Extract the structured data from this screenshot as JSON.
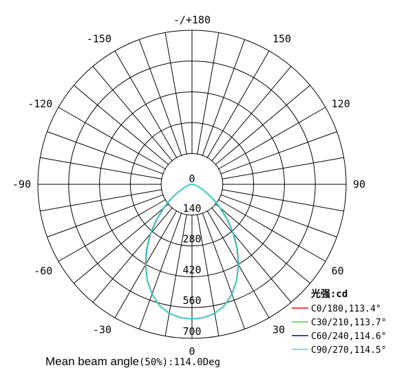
{
  "chart_data": {
    "type": "polar",
    "unit_label": "光强:cd",
    "radial_ticks": [
      "0",
      "140",
      "280",
      "420",
      "560",
      "700"
    ],
    "radial_values": [
      0,
      140,
      280,
      420,
      560,
      700
    ],
    "r_max": 700,
    "angle_labels": [
      {
        "text": "0",
        "deg": 0
      },
      {
        "text": "30",
        "deg": 30
      },
      {
        "text": "60",
        "deg": 60
      },
      {
        "text": "90",
        "deg": 90
      },
      {
        "text": "120",
        "deg": 120
      },
      {
        "text": "150",
        "deg": 150
      },
      {
        "text": "-/+180",
        "deg": 180
      },
      {
        "text": "-150",
        "deg": -150
      },
      {
        "text": "-120",
        "deg": -120
      },
      {
        "text": "-90",
        "deg": -90
      },
      {
        "text": "-60",
        "deg": -60
      },
      {
        "text": "-30",
        "deg": -30
      }
    ],
    "spoke_step_deg": 10,
    "series": [
      {
        "name": "C0/180,113.4°",
        "color": "#ff0000",
        "angles": [
          -90,
          -80,
          -70,
          -60,
          -55,
          -50,
          -45,
          -40,
          -35,
          -30,
          -25,
          -20,
          -15,
          -10,
          -5,
          0,
          5,
          10,
          15,
          20,
          25,
          30,
          35,
          40,
          45,
          50,
          55,
          60,
          70,
          80,
          90
        ],
        "values": [
          0,
          12,
          30,
          75,
          115,
          165,
          225,
          290,
          355,
          420,
          480,
          530,
          570,
          595,
          608,
          612,
          608,
          595,
          570,
          530,
          480,
          420,
          355,
          290,
          225,
          165,
          115,
          75,
          30,
          12,
          0
        ]
      },
      {
        "name": "C30/210,113.7°",
        "color": "#33dd33",
        "angles": [
          -90,
          -80,
          -70,
          -60,
          -55,
          -50,
          -45,
          -40,
          -35,
          -30,
          -25,
          -20,
          -15,
          -10,
          -5,
          0,
          5,
          10,
          15,
          20,
          25,
          30,
          35,
          40,
          45,
          50,
          55,
          60,
          70,
          80,
          90
        ],
        "values": [
          0,
          12,
          32,
          80,
          120,
          170,
          232,
          296,
          360,
          424,
          482,
          532,
          571,
          596,
          608,
          612,
          608,
          596,
          571,
          532,
          482,
          424,
          360,
          296,
          232,
          170,
          120,
          80,
          32,
          12,
          0
        ]
      },
      {
        "name": "C60/240,114.6°",
        "color": "#0000cc",
        "angles": [
          -90,
          -80,
          -70,
          -60,
          -55,
          -50,
          -45,
          -40,
          -35,
          -30,
          -25,
          -20,
          -15,
          -10,
          -5,
          0,
          5,
          10,
          15,
          20,
          25,
          30,
          35,
          40,
          45,
          50,
          55,
          60,
          70,
          80,
          90
        ],
        "values": [
          0,
          12,
          31,
          77,
          117,
          168,
          228,
          293,
          358,
          422,
          481,
          531,
          570,
          595,
          608,
          612,
          608,
          595,
          570,
          531,
          481,
          422,
          358,
          293,
          228,
          168,
          117,
          77,
          31,
          12,
          0
        ]
      },
      {
        "name": "C90/270,114.5°",
        "color": "#33dddd",
        "angles": [
          -90,
          -80,
          -70,
          -60,
          -55,
          -50,
          -45,
          -40,
          -35,
          -30,
          -25,
          -20,
          -15,
          -10,
          -5,
          0,
          5,
          10,
          15,
          20,
          25,
          30,
          35,
          40,
          45,
          50,
          55,
          60,
          70,
          80,
          90
        ],
        "values": [
          0,
          12,
          30,
          76,
          116,
          166,
          227,
          292,
          357,
          421,
          481,
          531,
          570,
          595,
          608,
          612,
          608,
          595,
          570,
          531,
          481,
          421,
          357,
          292,
          227,
          166,
          116,
          76,
          30,
          12,
          0
        ]
      }
    ]
  },
  "footer": {
    "mean_label": "Mean beam angle",
    "mean_value": "(50%):114.0Deg"
  }
}
